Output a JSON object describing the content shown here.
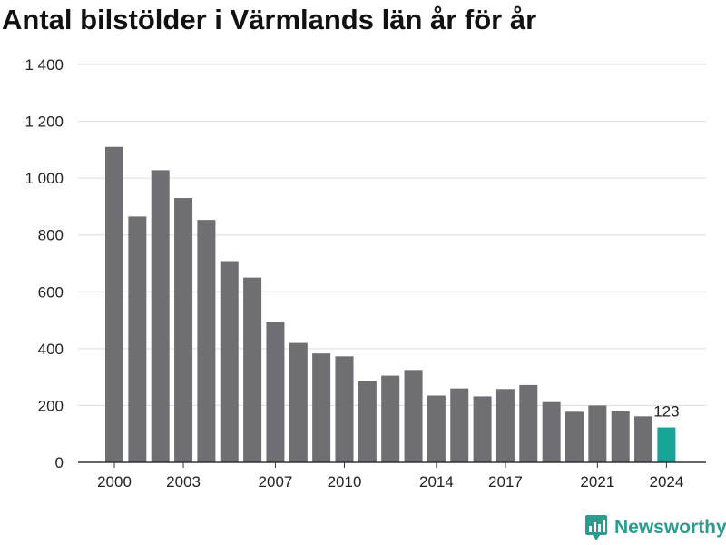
{
  "chart_data": {
    "type": "bar",
    "title": "Antal bilstölder i Värmlands län år för år",
    "categories": [
      "2000",
      "2001",
      "2002",
      "2003",
      "2004",
      "2005",
      "2006",
      "2007",
      "2008",
      "2009",
      "2010",
      "2011",
      "2012",
      "2013",
      "2014",
      "2015",
      "2016",
      "2017",
      "2018",
      "2019",
      "2020",
      "2021",
      "2022",
      "2023",
      "2024"
    ],
    "values": [
      1110,
      865,
      1028,
      930,
      853,
      708,
      650,
      495,
      420,
      383,
      373,
      286,
      305,
      325,
      235,
      260,
      232,
      258,
      272,
      212,
      178,
      200,
      180,
      162,
      123
    ],
    "x_tick_labels": [
      "2000",
      "2003",
      "2007",
      "2010",
      "2014",
      "2017",
      "2021",
      "2024"
    ],
    "y_ticks": [
      0,
      200,
      400,
      600,
      800,
      1000,
      1200,
      1400
    ],
    "y_tick_labels": [
      "0",
      "200",
      "400",
      "600",
      "800",
      "1 000",
      "1 200",
      "1 400"
    ],
    "ylim": [
      0,
      1400
    ],
    "xlabel": "",
    "ylabel": "",
    "grid": true,
    "highlight_index": 24,
    "highlight_label": "123",
    "colors": {
      "bar": "#6e6e73",
      "highlight": "#17a398",
      "grid": "#dddddd",
      "axis": "#333333",
      "text": "#222222"
    }
  },
  "branding": {
    "logo_text": "Newsworthy",
    "logo_icon": "bar-chart-icon",
    "logo_color": "#2a9d8f"
  }
}
